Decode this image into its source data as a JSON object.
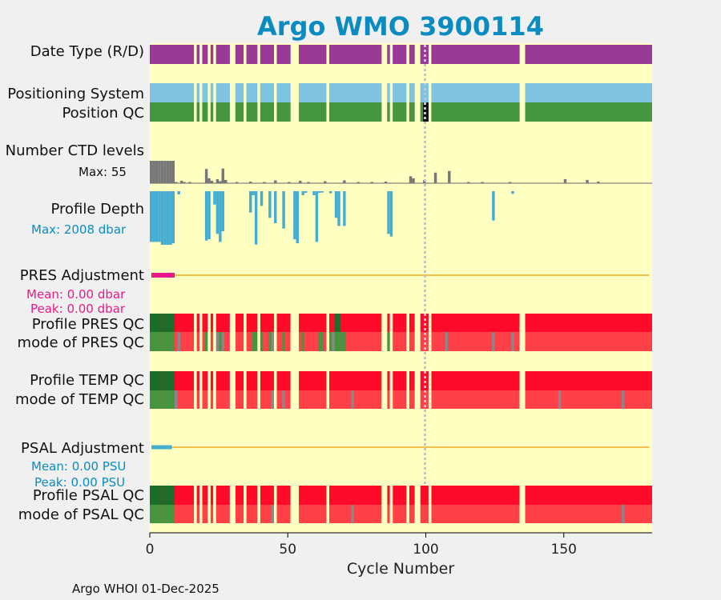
{
  "chart_data": {
    "type": "argo-float-summary",
    "title": "Argo WMO 3900114",
    "xlabel": "Cycle Number",
    "xlim": [
      0,
      182
    ],
    "xticks": [
      0,
      50,
      100,
      150
    ],
    "footer": "Argo WHOI 01-Dec-2025",
    "marker_cycle": 100,
    "missing_cycles": [
      16,
      18,
      21,
      23,
      29,
      30,
      34,
      39,
      45,
      51,
      52,
      53,
      64,
      84,
      85,
      87,
      93,
      96,
      97,
      101,
      134,
      135
    ],
    "rows": {
      "data_type": {
        "label": "Date Type (R/D)",
        "color": "#993b96"
      },
      "positioning_system": {
        "label": "Positioning System",
        "color": "#7ec3e0"
      },
      "position_qc": {
        "label": "Position QC",
        "color": "#46963f",
        "flag_color": "#111111",
        "flag_cycles": [
          99,
          100
        ]
      },
      "ctd_levels": {
        "label": "Number CTD levels",
        "max_label": "Max: 55",
        "color": "#777777",
        "values": [
          [
            0,
            55
          ],
          [
            1,
            55
          ],
          [
            2,
            55
          ],
          [
            3,
            55
          ],
          [
            4,
            55
          ],
          [
            5,
            55
          ],
          [
            6,
            55
          ],
          [
            7,
            55
          ],
          [
            8,
            55
          ],
          [
            9,
            3
          ],
          [
            11,
            6
          ],
          [
            12,
            3
          ],
          [
            14,
            3
          ],
          [
            20,
            35
          ],
          [
            21,
            12
          ],
          [
            22,
            6
          ],
          [
            24,
            10
          ],
          [
            25,
            5
          ],
          [
            26,
            36
          ],
          [
            27,
            8
          ],
          [
            31,
            3
          ],
          [
            36,
            4
          ],
          [
            41,
            3
          ],
          [
            45,
            7
          ],
          [
            50,
            3
          ],
          [
            54,
            6
          ],
          [
            57,
            3
          ],
          [
            63,
            5
          ],
          [
            70,
            7
          ],
          [
            75,
            3
          ],
          [
            80,
            3
          ],
          [
            85,
            4
          ],
          [
            94,
            17
          ],
          [
            95,
            12
          ],
          [
            99,
            8
          ],
          [
            103,
            26
          ],
          [
            108,
            30
          ],
          [
            115,
            3
          ],
          [
            120,
            3
          ],
          [
            130,
            3
          ],
          [
            150,
            10
          ],
          [
            158,
            8
          ],
          [
            162,
            4
          ]
        ]
      },
      "profile_depth": {
        "label": "Profile Depth",
        "max_label": "Max: 2008 dbar",
        "color": "#45add2",
        "depths": [
          [
            0,
            1900
          ],
          [
            1,
            1900
          ],
          [
            2,
            1900
          ],
          [
            3,
            1900
          ],
          [
            4,
            2008
          ],
          [
            5,
            2008
          ],
          [
            6,
            2008
          ],
          [
            7,
            2008
          ],
          [
            8,
            1950
          ],
          [
            10,
            120
          ],
          [
            20,
            1850
          ],
          [
            21,
            1800
          ],
          [
            23,
            500
          ],
          [
            24,
            1600
          ],
          [
            25,
            1900
          ],
          [
            26,
            1500
          ],
          [
            36,
            800
          ],
          [
            37,
            150
          ],
          [
            38,
            2000
          ],
          [
            40,
            550
          ],
          [
            43,
            1000
          ],
          [
            45,
            1200
          ],
          [
            48,
            1400
          ],
          [
            52,
            1800
          ],
          [
            53,
            1950
          ],
          [
            55,
            150
          ],
          [
            56,
            60
          ],
          [
            59,
            150
          ],
          [
            60,
            1900
          ],
          [
            61,
            60
          ],
          [
            62,
            50
          ],
          [
            65,
            80
          ],
          [
            67,
            1000
          ],
          [
            68,
            1300
          ],
          [
            70,
            1300
          ],
          [
            86,
            1600
          ],
          [
            87,
            1700
          ],
          [
            124,
            1100
          ],
          [
            131,
            100
          ]
        ]
      },
      "pres_adjustment": {
        "label": "PRES Adjustment",
        "mean_label": "Mean: 0.00 dbar",
        "peak_label": "Peak: 0.00 dbar",
        "line_color": "#f0c050",
        "start_color": "#e7198c"
      },
      "profile_pres_qc": {
        "label": "Profile PRES QC",
        "base_color": "#ff0a28",
        "good_color": "#1a6e2a",
        "good_cycles": [
          0,
          1,
          2,
          3,
          4,
          5,
          6,
          7,
          8,
          67,
          68
        ]
      },
      "mode_pres_qc": {
        "label": "mode of PRES QC",
        "base_color": "#ff4049",
        "good_color": "#46963f",
        "grey_color": "#888888",
        "good_cycles": [
          0,
          1,
          2,
          3,
          4,
          5,
          6,
          7,
          8,
          20,
          21,
          25,
          37,
          38,
          40,
          43,
          48,
          55,
          61,
          62,
          65,
          67,
          68,
          69,
          70,
          86,
          87
        ],
        "grey_cycles": [
          10,
          24,
          26,
          44,
          66,
          93,
          107,
          124,
          131
        ]
      },
      "profile_temp_qc": {
        "label": "Profile TEMP QC",
        "base_color": "#ff0a28",
        "good_color": "#1a6e2a",
        "good_cycles": [
          0,
          1,
          2,
          3,
          4,
          5,
          6,
          7,
          8
        ]
      },
      "mode_temp_qc": {
        "label": "mode of TEMP QC",
        "base_color": "#ff4049",
        "good_color": "#46963f",
        "grey_color": "#888888",
        "good_cycles": [
          0,
          1,
          2,
          3,
          4,
          5,
          6,
          7,
          8
        ],
        "grey_cycles": [
          9,
          44,
          48,
          73,
          93,
          148,
          171
        ]
      },
      "psal_adjustment": {
        "label": "PSAL Adjustment",
        "mean_label": "Mean: 0.00 PSU",
        "peak_label": "Peak: 0.00 PSU",
        "line_color": "#f0c050",
        "start_color": "#45add2"
      },
      "profile_psal_qc": {
        "label": "Profile PSAL QC",
        "base_color": "#ff0a28",
        "good_color": "#1a6e2a",
        "good_cycles": [
          0,
          1,
          2,
          3,
          4,
          5,
          6,
          7,
          8
        ]
      },
      "mode_psal_qc": {
        "label": "mode of PSAL QC",
        "base_color": "#ff4049",
        "good_color": "#46963f",
        "grey_color": "#888888",
        "good_cycles": [
          0,
          1,
          2,
          3,
          4,
          5,
          6,
          7,
          8
        ],
        "grey_cycles": [
          44,
          73,
          93,
          171
        ]
      }
    },
    "colors": {
      "title": "#0a8cc0",
      "background": "#ffffc1",
      "marker": "#c0c0e0",
      "figure": "#f0f0f0"
    }
  }
}
